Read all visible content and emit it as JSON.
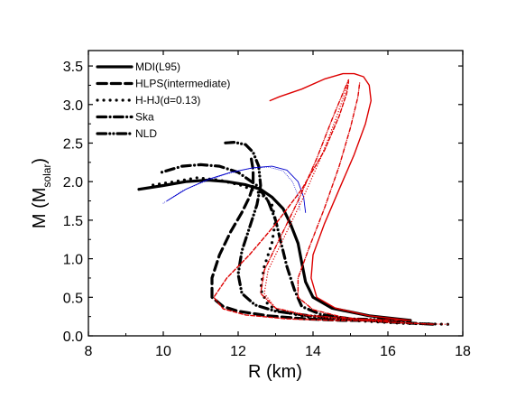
{
  "chart_data": {
    "type": "line",
    "xlabel": "R (km)",
    "ylabel": {
      "main": "M (M",
      "sub": "solar",
      "end": ")"
    },
    "xlim": [
      8,
      18
    ],
    "ylim": [
      0.0,
      3.7
    ],
    "xticks": [
      8,
      10,
      12,
      14,
      16,
      18
    ],
    "yticks": [
      0.0,
      0.5,
      1.0,
      1.5,
      2.0,
      2.5,
      3.0,
      3.5
    ],
    "ytick_labels": [
      "0.0",
      "0.5",
      "1.0",
      "1.5",
      "2.0",
      "2.5",
      "3.0",
      "3.5"
    ],
    "legend_position": "top-left",
    "colors": {
      "neutron_star": "#000000",
      "strange_star": "#0000cc",
      "hybrid_star": "#dd0000"
    },
    "series": [
      {
        "name": "MDI(L95)",
        "group": "neutron_star",
        "style": "solid",
        "width": 3.2,
        "x": [
          16.6,
          15.5,
          14.5,
          14.0,
          13.8,
          13.7,
          13.6,
          13.4,
          13.2,
          12.9,
          12.6,
          12.2,
          11.7,
          11.2,
          10.6,
          10.0,
          9.35
        ],
        "y": [
          0.2,
          0.26,
          0.36,
          0.5,
          0.7,
          0.95,
          1.2,
          1.45,
          1.65,
          1.8,
          1.9,
          1.96,
          2.0,
          2.02,
          2.0,
          1.95,
          1.9
        ]
      },
      {
        "name": "HLPS(intermediate)",
        "group": "neutron_star",
        "style": "dash",
        "width": 3.2,
        "x": [
          16.0,
          14.8,
          13.8,
          12.8,
          12.0,
          11.6,
          11.3,
          11.3,
          11.5,
          11.8,
          12.1,
          12.3,
          12.4,
          12.4,
          12.35
        ],
        "y": [
          0.2,
          0.2,
          0.22,
          0.26,
          0.32,
          0.38,
          0.5,
          0.75,
          1.05,
          1.35,
          1.6,
          1.8,
          1.95,
          2.15,
          2.3
        ]
      },
      {
        "name": "H-HJ(d=0.13)",
        "group": "neutron_star",
        "style": "dot",
        "width": 3.2,
        "x": [
          17.6,
          16.5,
          15.0,
          13.8,
          13.1,
          12.8,
          12.6,
          12.7,
          12.9,
          13.0,
          12.9,
          12.6,
          12.1,
          11.5,
          10.9,
          10.3,
          9.65
        ],
        "y": [
          0.15,
          0.16,
          0.2,
          0.25,
          0.32,
          0.4,
          0.6,
          0.9,
          1.2,
          1.5,
          1.7,
          1.85,
          1.95,
          2.02,
          2.05,
          2.0,
          1.95
        ]
      },
      {
        "name": "Ska",
        "group": "neutron_star",
        "style": "dashdot",
        "width": 3.2,
        "x": [
          17.2,
          16.0,
          15.0,
          14.2,
          13.7,
          13.5,
          13.3,
          13.15,
          13.0,
          12.8,
          12.5,
          12.0,
          11.5,
          11.0,
          10.5,
          9.95
        ],
        "y": [
          0.15,
          0.18,
          0.22,
          0.28,
          0.38,
          0.6,
          0.9,
          1.2,
          1.5,
          1.75,
          1.95,
          2.12,
          2.2,
          2.22,
          2.2,
          2.12
        ]
      },
      {
        "name": "NLD",
        "group": "neutron_star",
        "style": "dashdotdot",
        "width": 3.2,
        "x": [
          16.5,
          15.0,
          13.9,
          13.0,
          12.45,
          12.1,
          12.0,
          12.1,
          12.3,
          12.5,
          12.6,
          12.55,
          12.4,
          12.2,
          11.9,
          11.6
        ],
        "y": [
          0.2,
          0.22,
          0.26,
          0.32,
          0.4,
          0.55,
          0.8,
          1.1,
          1.4,
          1.7,
          1.95,
          2.2,
          2.38,
          2.48,
          2.51,
          2.5
        ]
      },
      {
        "group": "strange_star",
        "style": "solid",
        "width": 0.9,
        "x": [
          10.1,
          10.6,
          11.2,
          11.8,
          12.4,
          12.9,
          13.3,
          13.6,
          13.75,
          13.8
        ],
        "y": [
          1.75,
          1.9,
          2.03,
          2.12,
          2.18,
          2.2,
          2.15,
          2.0,
          1.8,
          1.6
        ]
      },
      {
        "group": "strange_star",
        "style": "dot",
        "width": 0.9,
        "x": [
          10.0,
          10.5,
          11.1,
          11.7,
          12.3,
          12.8,
          13.2,
          13.45,
          13.6,
          13.65
        ],
        "y": [
          1.72,
          1.88,
          2.0,
          2.1,
          2.17,
          2.19,
          2.14,
          2.0,
          1.82,
          1.62
        ]
      },
      {
        "group": "hybrid_star",
        "style": "solid",
        "width": 1.4,
        "x": [
          16.6,
          15.5,
          14.6,
          14.1,
          13.95,
          14.0,
          14.3,
          14.7,
          15.1,
          15.4,
          15.55,
          15.5,
          15.35,
          15.1,
          14.8,
          14.3,
          13.7,
          13.1,
          12.85
        ],
        "y": [
          0.2,
          0.26,
          0.36,
          0.5,
          0.75,
          1.05,
          1.45,
          1.9,
          2.35,
          2.75,
          3.05,
          3.25,
          3.36,
          3.4,
          3.4,
          3.33,
          3.2,
          3.1,
          3.05
        ]
      },
      {
        "group": "hybrid_star",
        "style": "dash",
        "width": 1.4,
        "x": [
          16.0,
          14.6,
          13.3,
          12.2,
          11.6,
          11.35,
          11.7,
          12.3,
          13.0,
          13.7,
          14.3,
          14.7,
          14.9,
          14.95
        ],
        "y": [
          0.2,
          0.2,
          0.22,
          0.27,
          0.35,
          0.5,
          0.75,
          1.05,
          1.45,
          1.9,
          2.4,
          2.85,
          3.15,
          3.3
        ]
      },
      {
        "group": "hybrid_star",
        "style": "dot",
        "width": 1.4,
        "x": [
          17.6,
          16.5,
          15.0,
          13.8,
          13.0,
          12.7,
          12.8,
          13.2,
          13.7,
          14.2,
          14.6,
          14.85,
          14.95
        ],
        "y": [
          0.15,
          0.16,
          0.2,
          0.26,
          0.36,
          0.55,
          0.85,
          1.25,
          1.75,
          2.3,
          2.8,
          3.15,
          3.3
        ]
      },
      {
        "group": "hybrid_star",
        "style": "dashdot",
        "width": 1.4,
        "x": [
          17.2,
          16.0,
          14.8,
          14.0,
          13.6,
          13.6,
          13.9,
          14.3,
          14.7,
          15.0,
          15.2,
          15.25
        ],
        "y": [
          0.15,
          0.18,
          0.24,
          0.34,
          0.5,
          0.75,
          1.15,
          1.65,
          2.2,
          2.7,
          3.1,
          3.3
        ]
      },
      {
        "group": "hybrid_star",
        "style": "dashdotdot",
        "width": 1.4,
        "x": [
          16.5,
          15.0,
          13.8,
          13.0,
          12.6,
          12.7,
          13.1,
          13.6,
          14.1,
          14.5,
          14.8,
          14.95
        ],
        "y": [
          0.2,
          0.22,
          0.27,
          0.36,
          0.55,
          0.85,
          1.25,
          1.75,
          2.3,
          2.8,
          3.15,
          3.32
        ]
      }
    ]
  }
}
